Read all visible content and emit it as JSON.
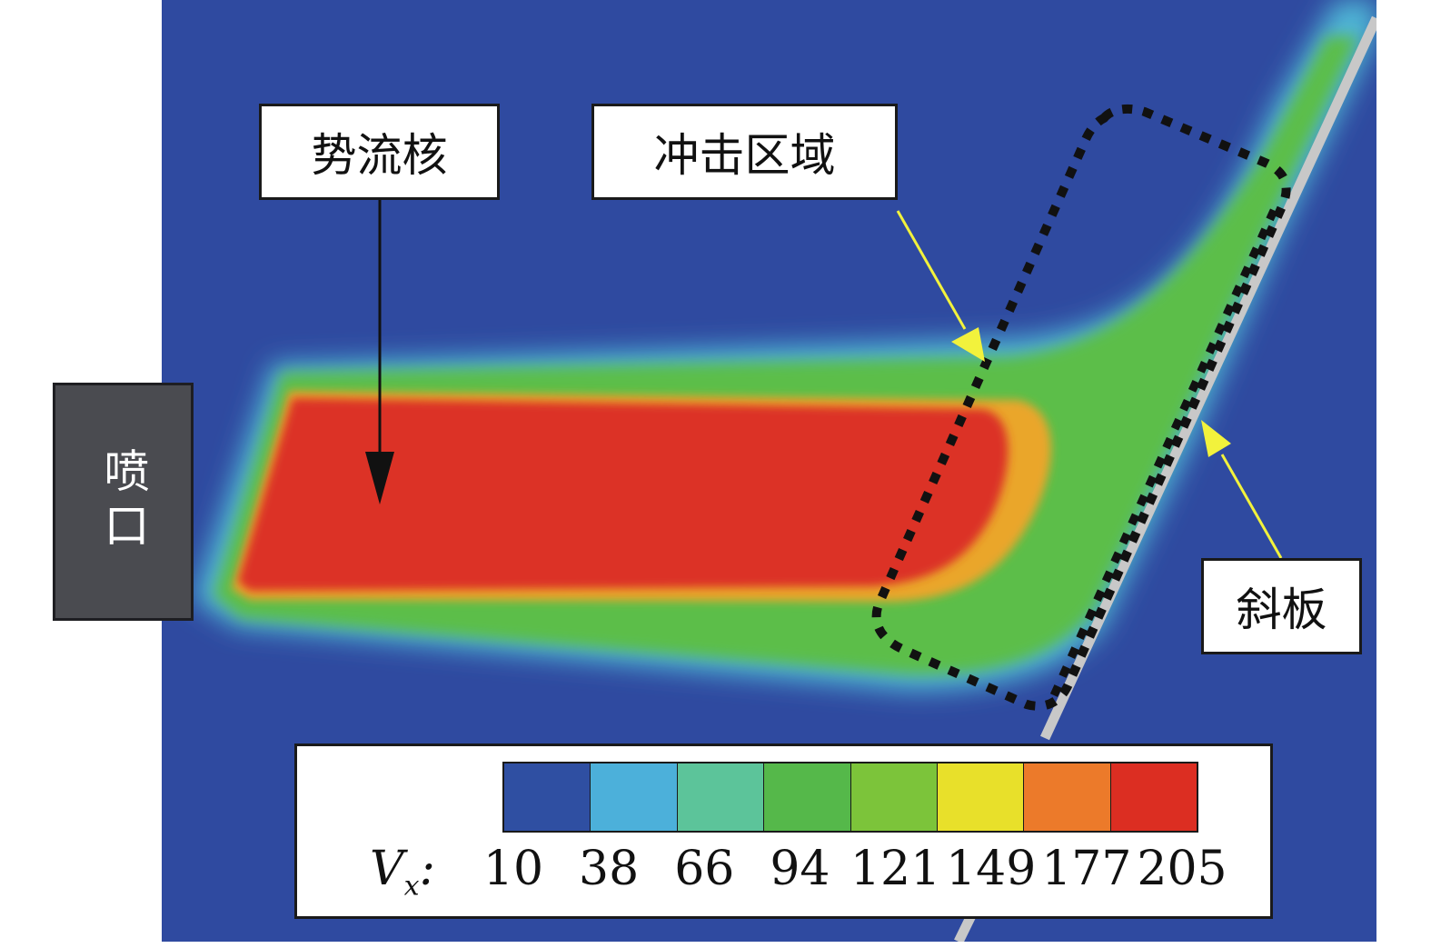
{
  "labels": {
    "potential_core": "势流核",
    "impact_region": "冲击区域",
    "nozzle": "喷口",
    "inclined_plate": "斜板"
  },
  "legend": {
    "variable_main": "V",
    "variable_sub": "x",
    "variable_suffix": ":",
    "ticks": [
      "10",
      "38",
      "66",
      "94",
      "121",
      "149",
      "177",
      "205"
    ],
    "colors": [
      "#2f4fa2",
      "#4cb0da",
      "#5cc49a",
      "#55b84a",
      "#7cc43a",
      "#e8e02a",
      "#ec7a2a",
      "#dc2e22"
    ]
  },
  "colors": {
    "background": "#2f4aa0",
    "core": "#dc3226",
    "shear_layer": "#5cbe4a",
    "annotation_arrow_dark": "#111111",
    "annotation_arrow_yellow": "#f2f23c"
  }
}
